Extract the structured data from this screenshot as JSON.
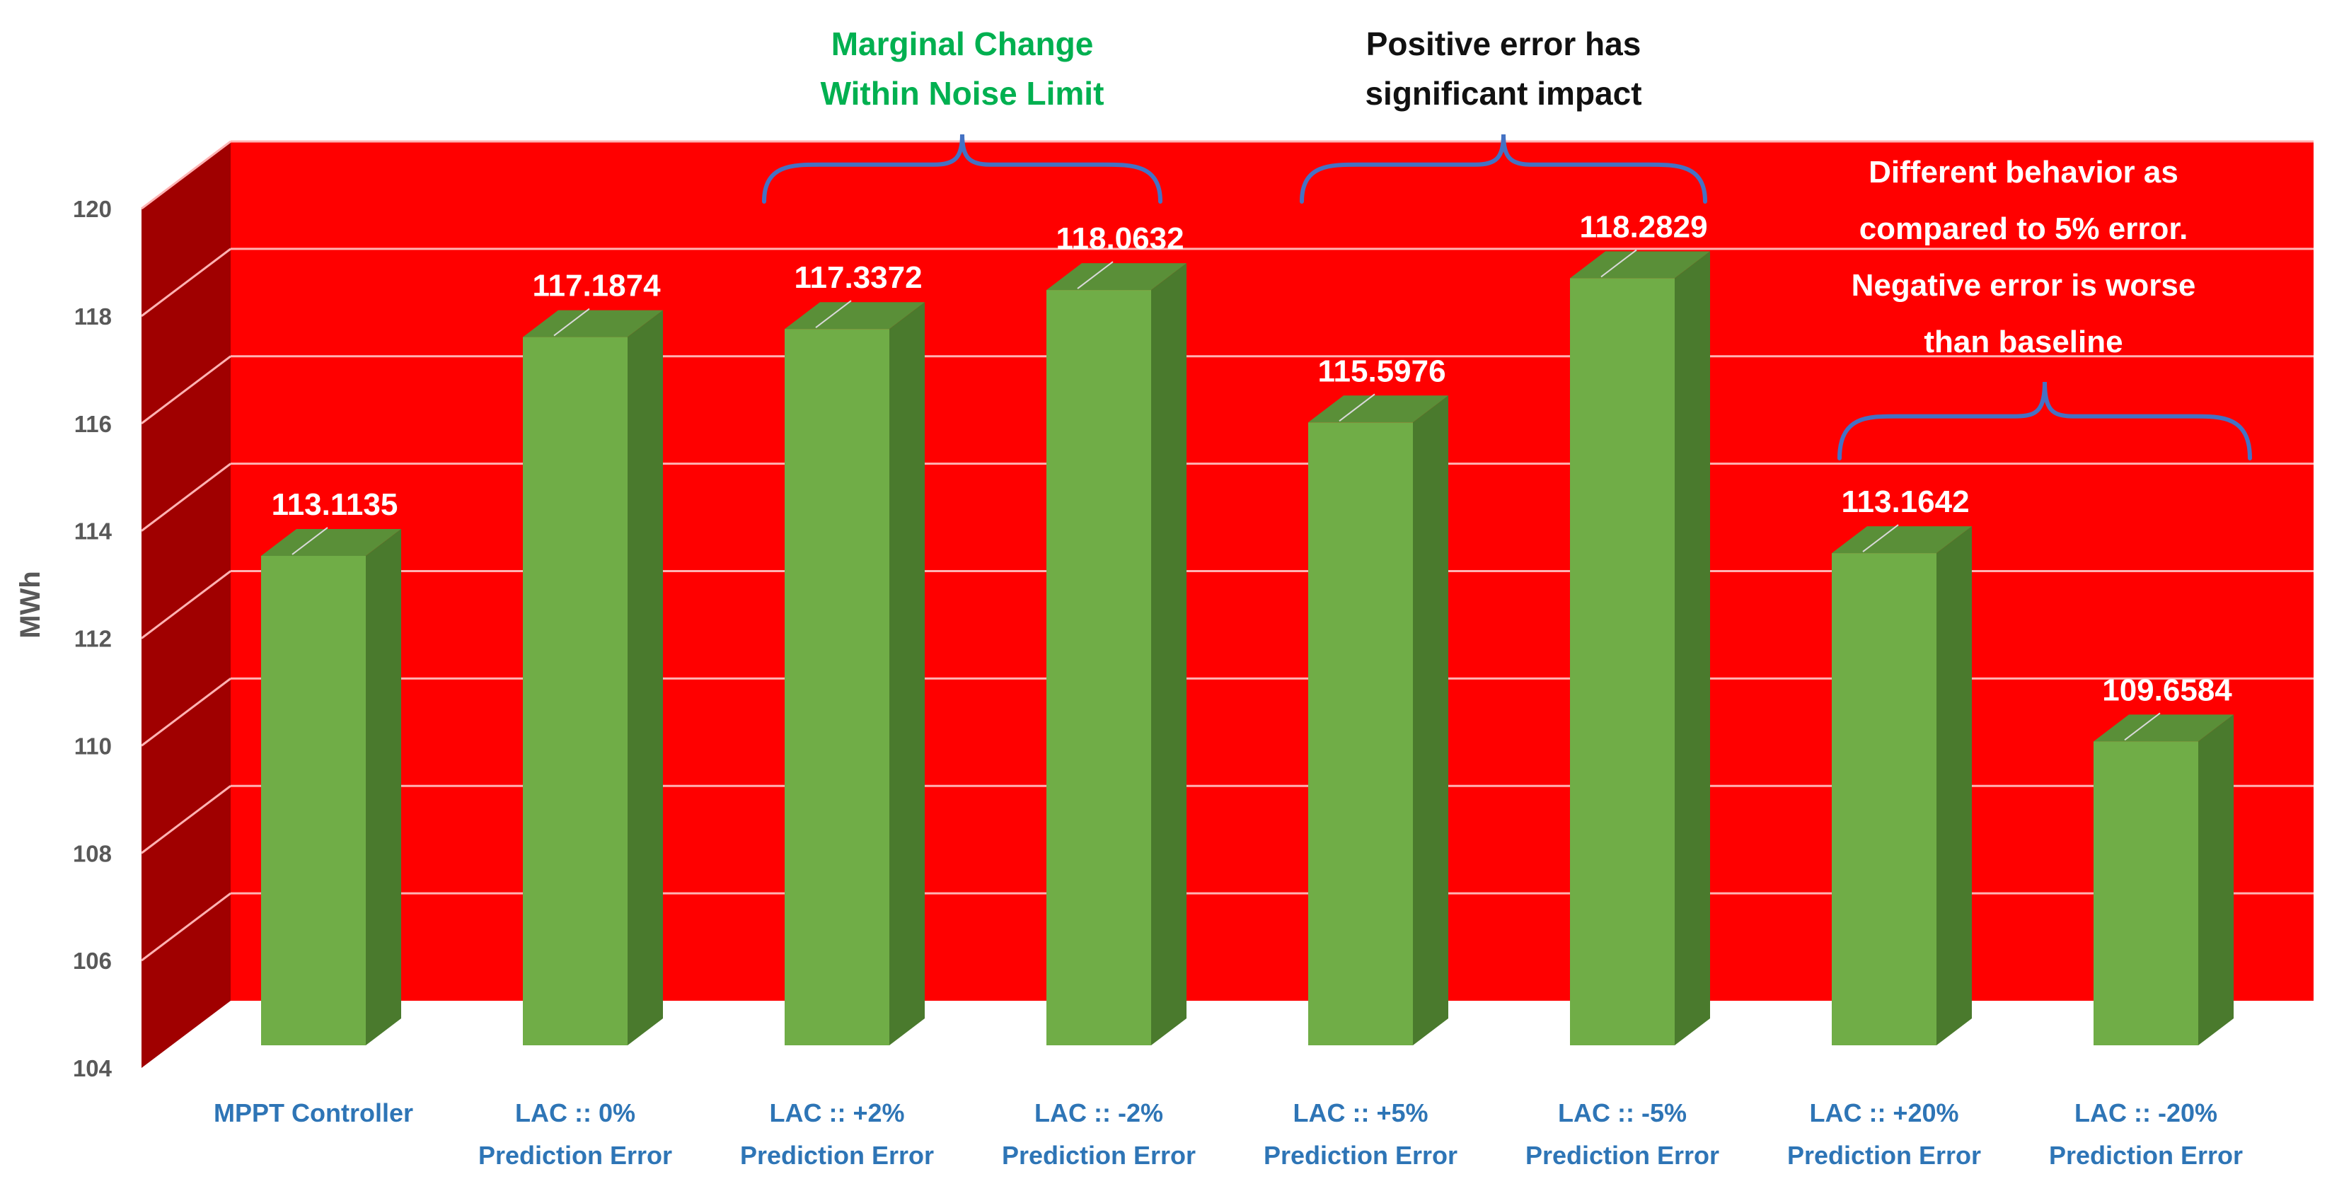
{
  "chart_data": {
    "type": "bar",
    "style": "3d-column",
    "ylabel": "MWh",
    "ylim": [
      104,
      120
    ],
    "yticks": [
      104,
      106,
      108,
      110,
      112,
      114,
      116,
      118,
      120
    ],
    "grid": true,
    "categories": [
      [
        "MPPT Controller"
      ],
      [
        "LAC :: 0%",
        "Prediction Error"
      ],
      [
        "LAC :: +2%",
        "Prediction Error"
      ],
      [
        "LAC :: -2%",
        "Prediction Error"
      ],
      [
        "LAC :: +5%",
        "Prediction Error"
      ],
      [
        "LAC :: -5%",
        "Prediction Error"
      ],
      [
        "LAC :: +20%",
        "Prediction Error"
      ],
      [
        "LAC :: -20%",
        "Prediction Error"
      ]
    ],
    "values": [
      113.1135,
      117.1874,
      117.3372,
      118.0632,
      115.5976,
      118.2829,
      113.1642,
      109.6584
    ],
    "value_labels": [
      "113.1135",
      "117.1874",
      "117.3372",
      "118.0632",
      "115.5976",
      "118.2829",
      "113.1642",
      "109.6584"
    ],
    "annotations": [
      {
        "lines": [
          "Marginal Change",
          "Within Noise Limit"
        ],
        "spans": [
          2,
          3
        ]
      },
      {
        "lines": [
          "Positive error has",
          "significant impact"
        ],
        "spans": [
          4,
          5
        ]
      },
      {
        "lines": [
          "Different behavior as",
          "compared to 5% error.",
          "Negative error is worse",
          "than baseline"
        ],
        "spans": [
          6,
          7
        ]
      }
    ],
    "colors": {
      "bar_front": "#70ad47",
      "bar_side": "#4a7a2d",
      "bar_top": "#5a8f38",
      "back_wall": "#ff0000",
      "side_wall": "#a00000",
      "gridline": "#ffb3b3",
      "brace": "#4472c4",
      "category_text": "#2e75b6",
      "annotation_green": "#00b050",
      "annotation_black": "#111111",
      "annotation_white": "#ffffff"
    }
  }
}
